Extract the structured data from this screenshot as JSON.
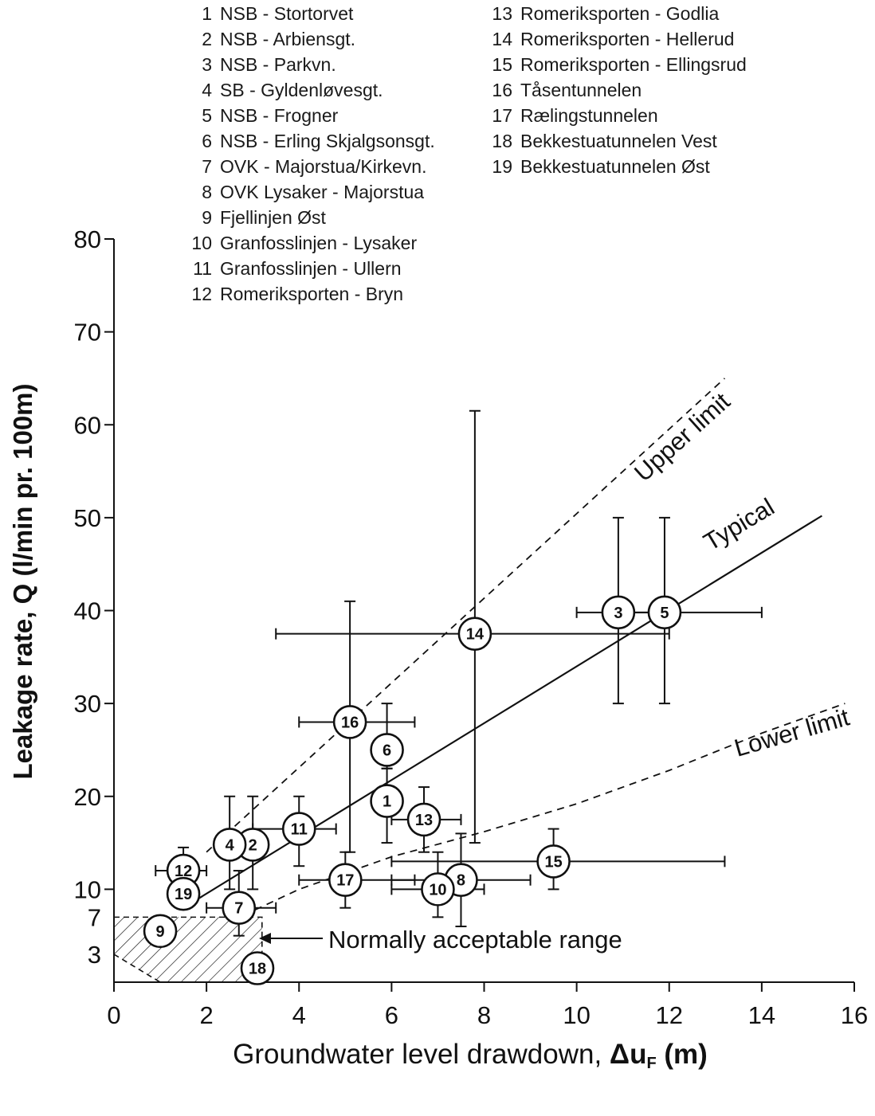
{
  "chart_data": {
    "type": "scatter",
    "title": "",
    "xlabel": "Groundwater level drawdown, ",
    "xlabel_symbol": "Δu",
    "xlabel_subscript": "F",
    "xlabel_unit": " (m)",
    "ylabel": "Leakage rate, Q (l/min pr. 100m)",
    "xlim": [
      0,
      16
    ],
    "ylim": [
      0,
      80
    ],
    "x_ticks": [
      0,
      2,
      4,
      6,
      8,
      10,
      12,
      14,
      16
    ],
    "y_ticks": [
      3,
      7,
      10,
      20,
      30,
      40,
      50,
      60,
      70,
      80
    ],
    "grid": false,
    "legend": [
      {
        "id": "1",
        "label": "NSB - Stortorvet"
      },
      {
        "id": "2",
        "label": "NSB - Arbiensgt."
      },
      {
        "id": "3",
        "label": "NSB - Parkvn."
      },
      {
        "id": "4",
        "label": "SB - Gyldenløvesgt."
      },
      {
        "id": "5",
        "label": "NSB - Frogner"
      },
      {
        "id": "6",
        "label": "NSB - Erling Skjalgsonsgt."
      },
      {
        "id": "7",
        "label": "OVK - Majorstua/Kirkevn."
      },
      {
        "id": "8",
        "label": "OVK Lysaker - Majorstua"
      },
      {
        "id": "9",
        "label": "Fjellinjen Øst"
      },
      {
        "id": "10",
        "label": "Granfosslinjen - Lysaker"
      },
      {
        "id": "11",
        "label": "Granfosslinjen - Ullern"
      },
      {
        "id": "12",
        "label": "Romeriksporten - Bryn"
      },
      {
        "id": "13",
        "label": "Romeriksporten - Godlia"
      },
      {
        "id": "14",
        "label": "Romeriksporten - Hellerud"
      },
      {
        "id": "15",
        "label": "Romeriksporten - Ellingsrud"
      },
      {
        "id": "16",
        "label": "Tåsentunnelen"
      },
      {
        "id": "17",
        "label": "Rælingstunnelen"
      },
      {
        "id": "18",
        "label": "Bekkestuatunnelen Vest"
      },
      {
        "id": "19",
        "label": "Bekkestuatunnelen Øst"
      }
    ],
    "points": [
      {
        "id": "1",
        "x": 5.9,
        "y": 19.5,
        "x_err": null,
        "y_err": [
          15,
          23
        ]
      },
      {
        "id": "2",
        "x": 3.0,
        "y": 14.8,
        "x_err": null,
        "y_err": [
          10,
          20
        ]
      },
      {
        "id": "3",
        "x": 10.9,
        "y": 39.8,
        "x_err": [
          10.0,
          12.0
        ],
        "y_err": [
          30,
          50
        ]
      },
      {
        "id": "4",
        "x": 2.5,
        "y": 14.8,
        "x_err": null,
        "y_err": [
          10,
          20
        ]
      },
      {
        "id": "5",
        "x": 11.9,
        "y": 39.8,
        "x_err": [
          10.8,
          14.0
        ],
        "y_err": [
          30,
          50
        ]
      },
      {
        "id": "6",
        "x": 5.9,
        "y": 25.0,
        "x_err": null,
        "y_err": [
          23,
          30
        ]
      },
      {
        "id": "7",
        "x": 2.7,
        "y": 8.0,
        "x_err": [
          2.0,
          3.5
        ],
        "y_err": [
          5,
          12
        ]
      },
      {
        "id": "8",
        "x": 7.5,
        "y": 11.0,
        "x_err": [
          6.0,
          9.0
        ],
        "y_err": [
          6,
          16
        ]
      },
      {
        "id": "9",
        "x": 1.0,
        "y": 5.5,
        "x_err": null,
        "y_err": null
      },
      {
        "id": "10",
        "x": 7.0,
        "y": 10.0,
        "x_err": [
          6.0,
          8.0
        ],
        "y_err": [
          7,
          14
        ]
      },
      {
        "id": "11",
        "x": 4.0,
        "y": 16.5,
        "x_err": [
          3.0,
          4.8
        ],
        "y_err": [
          12.5,
          20
        ]
      },
      {
        "id": "12",
        "x": 1.5,
        "y": 12.0,
        "x_err": [
          0.9,
          2.0
        ],
        "y_err": [
          9,
          14.5
        ]
      },
      {
        "id": "13",
        "x": 6.7,
        "y": 17.5,
        "x_err": [
          6.0,
          7.5
        ],
        "y_err": [
          14,
          21
        ]
      },
      {
        "id": "14",
        "x": 7.8,
        "y": 37.5,
        "x_err": [
          3.5,
          12.0
        ],
        "y_err": [
          15,
          61.5
        ]
      },
      {
        "id": "15",
        "x": 9.5,
        "y": 13.0,
        "x_err": [
          6.0,
          13.2
        ],
        "y_err": [
          10,
          16.5
        ]
      },
      {
        "id": "16",
        "x": 5.1,
        "y": 28.0,
        "x_err": [
          4.0,
          6.5
        ],
        "y_err": [
          14,
          41
        ]
      },
      {
        "id": "17",
        "x": 5.0,
        "y": 11.0,
        "x_err": [
          4.0,
          6.5
        ],
        "y_err": [
          8,
          14
        ]
      },
      {
        "id": "18",
        "x": 3.1,
        "y": 1.5,
        "x_err": null,
        "y_err": null
      },
      {
        "id": "19",
        "x": 1.5,
        "y": 9.5,
        "x_err": null,
        "y_err": null
      }
    ],
    "lines": [
      {
        "name": "Typical",
        "style": "solid",
        "x": [
          1.5,
          15.3
        ],
        "y": [
          8.0,
          50.2
        ]
      },
      {
        "name": "Upper limit",
        "style": "dashed",
        "x": [
          2.0,
          13.2
        ],
        "y": [
          14.0,
          65.0
        ]
      },
      {
        "name": "Lower limit",
        "style": "dashed",
        "x": [
          2.8,
          4.0,
          6.0,
          8.0,
          10.0,
          12.0,
          14.0,
          15.8
        ],
        "y": [
          7.2,
          10.0,
          13.5,
          16.2,
          19.2,
          22.8,
          26.8,
          30.0
        ]
      }
    ],
    "annotation": "Normally acceptable range",
    "acceptable_range_polygon": {
      "x": [
        0,
        3.2,
        3.2,
        1.0,
        0
      ],
      "y": [
        7,
        7,
        0,
        0,
        3
      ]
    }
  }
}
